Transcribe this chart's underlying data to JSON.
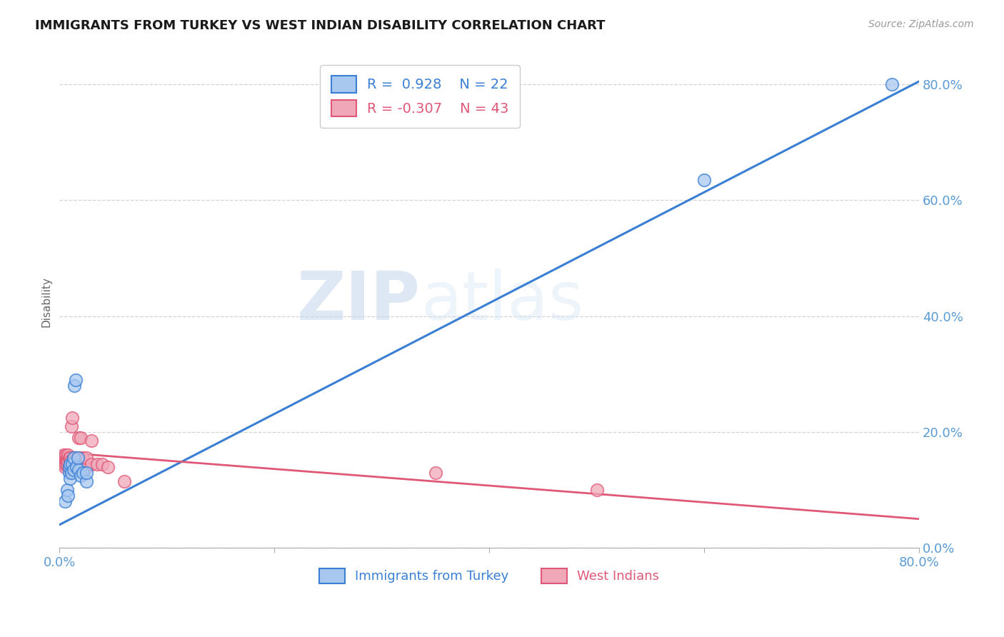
{
  "title": "IMMIGRANTS FROM TURKEY VS WEST INDIAN DISABILITY CORRELATION CHART",
  "source": "Source: ZipAtlas.com",
  "tick_color": "#5b9bd5",
  "ylabel": "Disability",
  "watermark_zip": "ZIP",
  "watermark_atlas": "atlas",
  "x_min": 0.0,
  "x_max": 0.8,
  "y_min": 0.0,
  "y_max": 0.85,
  "turkey_r": 0.928,
  "turkey_n": 22,
  "westindian_r": -0.307,
  "westindian_n": 43,
  "turkey_scatter_color": "#a8c8f0",
  "westindian_scatter_color": "#f0a8b8",
  "turkey_line_color": "#3a7fd4",
  "westindian_line_color": "#e05878",
  "legend_label_1": "Immigrants from Turkey",
  "legend_label_2": "West Indians",
  "ytick_values": [
    0.0,
    0.2,
    0.4,
    0.6,
    0.8
  ],
  "xtick_values": [
    0.0,
    0.2,
    0.4,
    0.6,
    0.8
  ],
  "turkey_x": [
    0.005,
    0.007,
    0.008,
    0.009,
    0.009,
    0.01,
    0.01,
    0.011,
    0.012,
    0.013,
    0.013,
    0.014,
    0.015,
    0.016,
    0.017,
    0.018,
    0.02,
    0.022,
    0.025,
    0.025,
    0.6,
    0.775
  ],
  "turkey_y": [
    0.08,
    0.1,
    0.09,
    0.13,
    0.14,
    0.12,
    0.145,
    0.13,
    0.145,
    0.135,
    0.155,
    0.28,
    0.29,
    0.14,
    0.155,
    0.135,
    0.125,
    0.13,
    0.115,
    0.13,
    0.635,
    0.8
  ],
  "westindian_x": [
    0.003,
    0.004,
    0.004,
    0.005,
    0.005,
    0.005,
    0.006,
    0.006,
    0.006,
    0.007,
    0.007,
    0.007,
    0.008,
    0.008,
    0.009,
    0.009,
    0.01,
    0.01,
    0.01,
    0.011,
    0.012,
    0.013,
    0.013,
    0.014,
    0.014,
    0.015,
    0.015,
    0.016,
    0.017,
    0.018,
    0.019,
    0.02,
    0.022,
    0.025,
    0.025,
    0.03,
    0.03,
    0.035,
    0.04,
    0.045,
    0.06,
    0.35,
    0.5
  ],
  "westindian_y": [
    0.145,
    0.16,
    0.155,
    0.155,
    0.145,
    0.14,
    0.155,
    0.16,
    0.145,
    0.155,
    0.15,
    0.145,
    0.16,
    0.15,
    0.155,
    0.14,
    0.155,
    0.15,
    0.145,
    0.21,
    0.225,
    0.155,
    0.145,
    0.155,
    0.15,
    0.155,
    0.14,
    0.15,
    0.155,
    0.19,
    0.155,
    0.19,
    0.155,
    0.14,
    0.155,
    0.185,
    0.145,
    0.145,
    0.145,
    0.14,
    0.115,
    0.13,
    0.1
  ],
  "blue_line_x0": 0.0,
  "blue_line_y0": 0.04,
  "blue_line_x1": 0.8,
  "blue_line_y1": 0.805,
  "pink_line_x0": 0.0,
  "pink_line_y0": 0.165,
  "pink_line_x1": 0.8,
  "pink_line_y1": 0.05
}
